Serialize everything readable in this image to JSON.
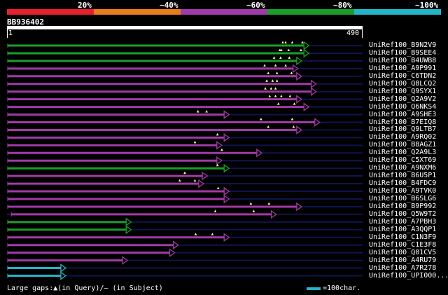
{
  "identity_bands": [
    {
      "label": "20%",
      "color": "#e8202e"
    },
    {
      "label": "~40%",
      "color": "#e87c1c"
    },
    {
      "label": "~60%",
      "color": "#a03aa8"
    },
    {
      "label": "~80%",
      "color": "#1a9e2a"
    },
    {
      "label": "~100%",
      "color": "#22b5c8"
    }
  ],
  "query": {
    "id": "BB936402",
    "start": "1",
    "end": "490",
    "length": 490
  },
  "colors": {
    "background": "#000000",
    "track": "#0e1450",
    "gap_mark": "#ffff99"
  },
  "hits": [
    {
      "name": "UniRef100_B9N2V9",
      "color": "#1a9e2a",
      "end": 415,
      "gaps": [
        380,
        393,
        407,
        384
      ]
    },
    {
      "name": "UniRef100_B9SEE4",
      "color": "#1a9e2a",
      "end": 415,
      "gaps": [
        378,
        388,
        405,
        376
      ]
    },
    {
      "name": "UniRef100_B4UWB8",
      "color": "#1a9e2a",
      "end": 405,
      "gaps": [
        368,
        377,
        389
      ]
    },
    {
      "name": "UniRef100_A9P991",
      "color": "#a03aa8",
      "end": 400,
      "gaps": [
        355,
        370,
        384
      ]
    },
    {
      "name": "UniRef100_C6TDN2",
      "color": "#a03aa8",
      "end": 405,
      "gaps": [
        360,
        372,
        392
      ]
    },
    {
      "name": "UniRef100_Q8LCQ2",
      "color": "#a03aa8",
      "end": 425,
      "gaps": [
        358,
        366,
        372
      ]
    },
    {
      "name": "UniRef100_Q9SYX1",
      "color": "#a03aa8",
      "end": 425,
      "gaps": [
        356,
        364,
        370
      ]
    },
    {
      "name": "UniRef100_Q2A9V2",
      "color": "#a03aa8",
      "end": 405,
      "gaps": [
        362,
        370,
        378,
        390
      ]
    },
    {
      "name": "UniRef100_Q6NKS4",
      "color": "#a03aa8",
      "end": 415,
      "gaps": [
        374,
        396
      ]
    },
    {
      "name": "UniRef100_A9SHE3",
      "color": "#a03aa8",
      "end": 305,
      "gaps": [
        263,
        275
      ]
    },
    {
      "name": "UniRef100_B7EIQ8",
      "color": "#a03aa8",
      "end": 430,
      "gaps": [
        350,
        393
      ]
    },
    {
      "name": "UniRef100_Q9LTB7",
      "color": "#a03aa8",
      "end": 405,
      "gaps": [
        360,
        395
      ]
    },
    {
      "name": "UniRef100_A9RQ02",
      "color": "#a03aa8",
      "end": 305,
      "gaps": [
        290
      ]
    },
    {
      "name": "UniRef100_B8AGZ1",
      "color": "#a03aa8",
      "end": 295,
      "gaps": [
        259
      ]
    },
    {
      "name": "UniRef100_Q2A9L3",
      "color": "#a03aa8",
      "end": 350,
      "gaps": [
        296
      ]
    },
    {
      "name": "UniRef100_C5XT69",
      "color": "#a03aa8",
      "end": 295,
      "gaps": []
    },
    {
      "name": "UniRef100_A9NXM6",
      "color": "#1a9e2a",
      "end": 305,
      "gaps": [
        290
      ]
    },
    {
      "name": "UniRef100_B6U5P1",
      "color": "#a03aa8",
      "end": 275,
      "gaps": [
        245
      ]
    },
    {
      "name": "UniRef100_B4FDC9",
      "color": "#a03aa8",
      "end": 270,
      "gaps": [
        238,
        259
      ]
    },
    {
      "name": "UniRef100_A9TVK0",
      "color": "#a03aa8",
      "end": 305,
      "gaps": [
        291
      ]
    },
    {
      "name": "UniRef100_B6SLG6",
      "color": "#a03aa8",
      "end": 305,
      "gaps": []
    },
    {
      "name": "UniRef100_B9P992",
      "color": "#a03aa8",
      "end": 405,
      "gaps": [
        336,
        361
      ]
    },
    {
      "name": "UniRef100_Q5W9T2",
      "color": "#a03aa8",
      "end": 370,
      "gaps": [
        287,
        340
      ],
      "start": 6
    },
    {
      "name": "UniRef100_A7PBH3",
      "color": "#1a9e2a",
      "end": 170,
      "gaps": []
    },
    {
      "name": "UniRef100_A3QQP1",
      "color": "#1a9e2a",
      "end": 170,
      "gaps": []
    },
    {
      "name": "UniRef100_C1N3F9",
      "color": "#a03aa8",
      "end": 305,
      "gaps": [
        260,
        283
      ]
    },
    {
      "name": "UniRef100_C1E3F8",
      "color": "#a03aa8",
      "end": 235,
      "gaps": []
    },
    {
      "name": "UniRef100_Q01CV5",
      "color": "#a03aa8",
      "end": 230,
      "gaps": []
    },
    {
      "name": "UniRef100_A4RU79",
      "color": "#a03aa8",
      "end": 165,
      "gaps": []
    },
    {
      "name": "UniRef100_A7R278",
      "color": "#22b5c8",
      "end": 80,
      "gaps": []
    },
    {
      "name": "UniRef100_UPI000...",
      "color": "#22b5c8",
      "end": 80,
      "gaps": []
    }
  ],
  "legend": {
    "gaps_text": "Large gaps:▲(in Query)/– (in Subject)",
    "scale_text": "=100char."
  }
}
